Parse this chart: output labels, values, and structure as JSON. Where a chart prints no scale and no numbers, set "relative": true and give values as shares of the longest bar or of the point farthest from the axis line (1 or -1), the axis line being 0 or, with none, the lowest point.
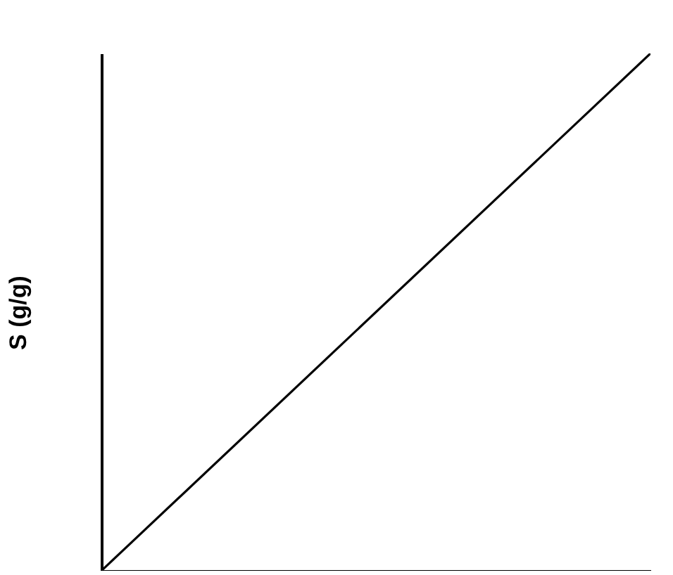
{
  "chart_data": {
    "type": "line",
    "ylabel": "S (g/g)",
    "relative": true,
    "grid": false,
    "categories": [
      null,
      null
    ],
    "series": [
      {
        "color": "#000000",
        "values": [
          0,
          1
        ]
      }
    ]
  }
}
